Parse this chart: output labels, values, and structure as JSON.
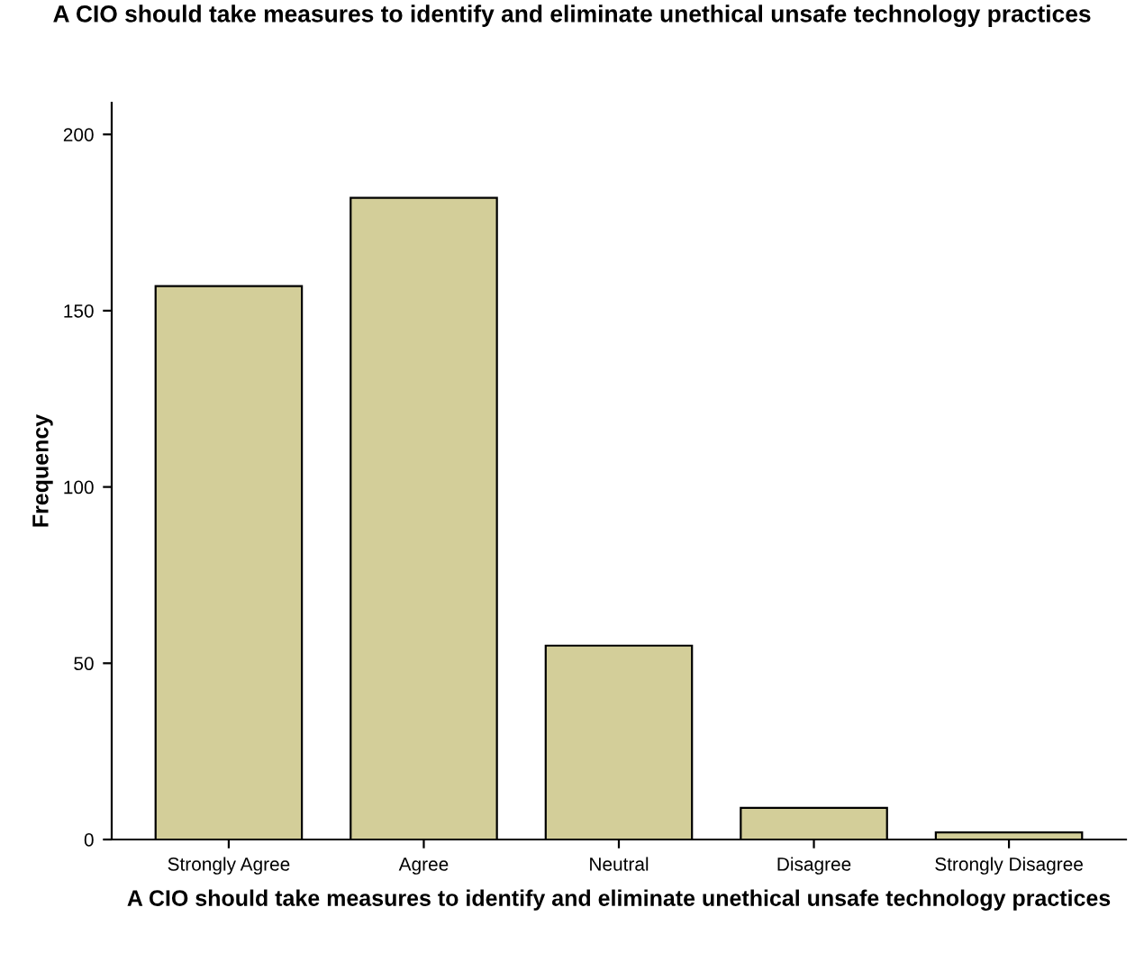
{
  "chart_data": {
    "type": "bar",
    "title": "A CIO should take measures to identify and eliminate unethical unsafe technology practices",
    "xlabel": "A CIO should take measures to identify and eliminate unethical unsafe technology practices",
    "ylabel": "Frequency",
    "categories": [
      "Strongly Agree",
      "Agree",
      "Neutral",
      "Disagree",
      "Strongly Disagree"
    ],
    "values": [
      157,
      182,
      55,
      9,
      2
    ],
    "color": "#d3ce99",
    "ylim": [
      0,
      209
    ],
    "yticks": [
      0,
      50,
      100,
      150,
      200
    ],
    "grid": false
  }
}
